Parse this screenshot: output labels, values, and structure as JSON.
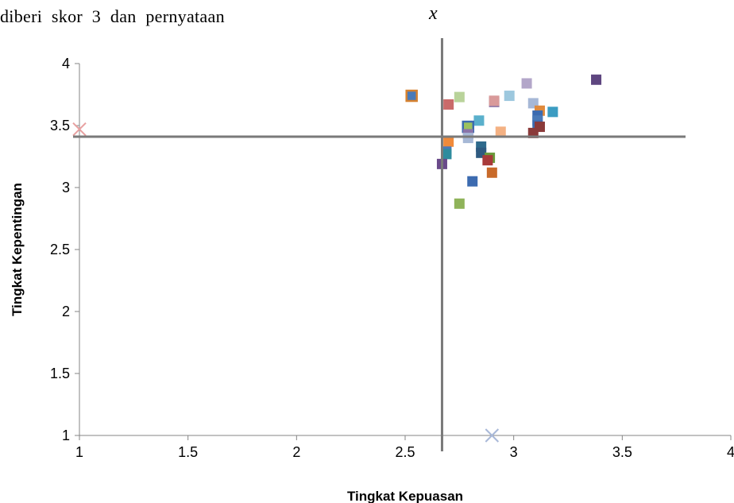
{
  "caption": {
    "text": "diberi skor 3 dan pernyataan",
    "variable": "x"
  },
  "chart_data": {
    "type": "scatter",
    "title": "",
    "xlabel": "Tingkat Kepuasan",
    "ylabel": "Tingkat Kepentingan",
    "xlim": [
      1,
      4
    ],
    "ylim": [
      1,
      4
    ],
    "xticks": [
      "1",
      "1.5",
      "2",
      "2.5",
      "3",
      "3.5",
      "4"
    ],
    "yticks": [
      "1",
      "1.5",
      "2",
      "2.5",
      "3",
      "3.5",
      "4"
    ],
    "grid": false,
    "legend": "none",
    "quadrant_lines": {
      "x_mean": 2.67,
      "y_mean": 3.41
    },
    "points": [
      {
        "x": 2.53,
        "y": 3.74,
        "color": "#4a7ab8",
        "edge": "#d5812f"
      },
      {
        "x": 2.7,
        "y": 3.67,
        "color": "#c96a6a"
      },
      {
        "x": 2.75,
        "y": 3.73,
        "color": "#b9d39a"
      },
      {
        "x": 2.91,
        "y": 3.69,
        "color": "#8a74a8"
      },
      {
        "x": 2.91,
        "y": 3.7,
        "color": "#d99a9a"
      },
      {
        "x": 2.98,
        "y": 3.74,
        "color": "#9dc8de"
      },
      {
        "x": 3.06,
        "y": 3.84,
        "color": "#b3a6c9"
      },
      {
        "x": 3.09,
        "y": 3.68,
        "color": "#a6b8d6"
      },
      {
        "x": 3.12,
        "y": 3.62,
        "color": "#e08a3c"
      },
      {
        "x": 3.18,
        "y": 3.61,
        "color": "#3b9cc2"
      },
      {
        "x": 3.38,
        "y": 3.87,
        "color": "#5e4680"
      },
      {
        "x": 3.11,
        "y": 3.58,
        "color": "#3c6bb0"
      },
      {
        "x": 3.11,
        "y": 3.54,
        "color": "#4a7ab8"
      },
      {
        "x": 3.11,
        "y": 3.5,
        "color": "#3c6bb0"
      },
      {
        "x": 3.12,
        "y": 3.49,
        "color": "#8a3a3a"
      },
      {
        "x": 3.09,
        "y": 3.44,
        "color": "#8a3a3a"
      },
      {
        "x": 2.84,
        "y": 3.54,
        "color": "#5ab0cc"
      },
      {
        "x": 2.79,
        "y": 3.49,
        "color": "#9cc25f",
        "edge": "#3c6bb0"
      },
      {
        "x": 2.79,
        "y": 3.43,
        "color": "#8a74a8"
      },
      {
        "x": 2.79,
        "y": 3.4,
        "color": "#a6b8d6"
      },
      {
        "x": 2.94,
        "y": 3.45,
        "color": "#f4b183"
      },
      {
        "x": 2.7,
        "y": 3.37,
        "color": "#f08a3a"
      },
      {
        "x": 2.69,
        "y": 3.29,
        "color": "#4a7ab8"
      },
      {
        "x": 2.69,
        "y": 3.27,
        "color": "#2e8c9e"
      },
      {
        "x": 2.85,
        "y": 3.33,
        "color": "#2e6a8c"
      },
      {
        "x": 2.85,
        "y": 3.28,
        "color": "#2e5a80"
      },
      {
        "x": 2.89,
        "y": 3.24,
        "color": "#6a9a3a"
      },
      {
        "x": 2.88,
        "y": 3.22,
        "color": "#a83a3a"
      },
      {
        "x": 2.67,
        "y": 3.19,
        "color": "#6a4a8a"
      },
      {
        "x": 2.9,
        "y": 3.12,
        "color": "#c86a2a"
      },
      {
        "x": 2.81,
        "y": 3.05,
        "color": "#3c6bb0"
      },
      {
        "x": 2.75,
        "y": 2.87,
        "color": "#8fb35a"
      }
    ],
    "cross_markers": [
      {
        "x": 1.0,
        "y": 3.47,
        "color": "#e8a0a0"
      },
      {
        "x": 2.9,
        "y": 1.0,
        "color": "#a8b8d8"
      }
    ]
  }
}
